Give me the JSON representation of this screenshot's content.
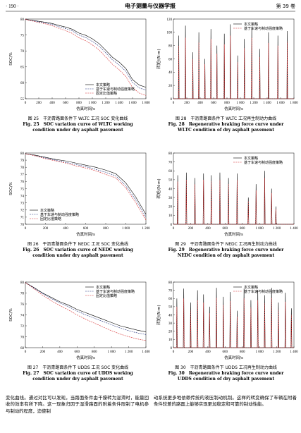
{
  "header": {
    "page": "· 190 ·",
    "journal": "电子测量与仪器学报",
    "volume": "第 39 卷"
  },
  "chart_data": [
    {
      "type": "line",
      "xlabel": "仿真时间/s",
      "ylabel": "SOC/%",
      "legend": "lower right",
      "xlim": [
        0,
        1800
      ],
      "xticks": [
        0,
        200,
        400,
        600,
        800,
        {
          "value": 1000,
          "label": "1 000"
        },
        {
          "value": 1200,
          "label": "1 200"
        },
        {
          "value": 1400,
          "label": "1 400"
        },
        {
          "value": 1600,
          "label": "1 600"
        },
        {
          "value": 1800,
          "label": "1 800"
        }
      ],
      "ylim": [
        55,
        80
      ],
      "yticks": [
        55,
        60,
        65,
        70,
        75,
        80
      ],
      "x": [
        0,
        100,
        200,
        300,
        400,
        500,
        600,
        700,
        800,
        900,
        1000,
        1100,
        1200,
        1300,
        1400,
        1500,
        1600,
        1700,
        1800
      ],
      "series": [
        {
          "name": "本文策略",
          "color": "#000000",
          "dashed": false,
          "values": [
            79.9,
            79.6,
            79.3,
            79.0,
            78.6,
            78.0,
            77.5,
            76.8,
            75.6,
            74.9,
            73.8,
            72.3,
            70.2,
            68.0,
            66.5,
            64.5,
            61.0,
            59.3,
            58.6
          ]
        },
        {
          "name": "基于车速与制动强度策略",
          "color": "#1f2f7a",
          "dashed": true,
          "values": [
            79.9,
            79.5,
            79.1,
            78.8,
            78.3,
            77.6,
            77.0,
            76.3,
            75.0,
            74.2,
            73.0,
            71.5,
            69.4,
            67.2,
            65.6,
            63.6,
            60.1,
            58.4,
            57.7
          ]
        },
        {
          "name": "固定比值策略",
          "color": "#d62728",
          "dashed": true,
          "values": [
            79.9,
            79.4,
            78.9,
            78.5,
            77.9,
            77.1,
            76.4,
            75.5,
            74.1,
            73.2,
            71.9,
            70.3,
            68.1,
            65.8,
            64.1,
            62.0,
            58.5,
            56.8,
            56.0
          ]
        }
      ]
    },
    {
      "type": "line",
      "xlabel": "仿真时间/s",
      "ylabel": "SOC/%",
      "legend": "lower left",
      "xlim": [
        0,
        1200
      ],
      "xticks": [
        0,
        200,
        400,
        600,
        800,
        {
          "value": 1000,
          "label": "1 000"
        },
        {
          "value": 1200,
          "label": "1 200"
        }
      ],
      "ylim": [
        70,
        80
      ],
      "yticks": [
        70,
        71,
        72,
        73,
        74,
        75,
        76,
        77,
        78,
        79,
        80
      ],
      "x": [
        0,
        100,
        200,
        300,
        400,
        500,
        600,
        700,
        800,
        900,
        1000,
        1100,
        1200
      ],
      "series": [
        {
          "name": "本文策略",
          "color": "#000000",
          "dashed": false,
          "values": [
            79.9,
            79.7,
            79.4,
            79.1,
            78.9,
            78.6,
            78.3,
            78.0,
            77.6,
            77.1,
            75.8,
            73.8,
            71.4
          ]
        },
        {
          "name": "基于车速与制动强度策略",
          "color": "#1f2f7a",
          "dashed": true,
          "values": [
            79.9,
            79.6,
            79.3,
            79.0,
            78.7,
            78.4,
            78.1,
            77.7,
            77.3,
            76.8,
            75.4,
            73.4,
            71.0
          ]
        },
        {
          "name": "固定比值策略",
          "color": "#d62728",
          "dashed": true,
          "values": [
            79.9,
            79.6,
            79.2,
            78.9,
            78.6,
            78.2,
            77.9,
            77.5,
            77.0,
            76.5,
            75.1,
            73.0,
            70.6
          ]
        }
      ]
    },
    {
      "type": "line",
      "xlabel": "仿真时间/s",
      "ylabel": "SOC/%",
      "legend": "upper right",
      "xlim": [
        0,
        1400
      ],
      "xticks": [
        0,
        200,
        400,
        600,
        800,
        {
          "value": 1000,
          "label": "1 000"
        },
        {
          "value": 1200,
          "label": "1 200"
        },
        {
          "value": 1400,
          "label": "1 400"
        }
      ],
      "ylim": [
        68,
        80
      ],
      "yticks": [
        68,
        70,
        72,
        74,
        76,
        78,
        80
      ],
      "x": [
        0,
        100,
        200,
        300,
        400,
        500,
        600,
        700,
        800,
        900,
        1000,
        1100,
        1200,
        1300,
        1400
      ],
      "series": [
        {
          "name": "本文策略",
          "color": "#000000",
          "dashed": false,
          "values": [
            79.9,
            79.0,
            78.0,
            77.2,
            76.4,
            75.8,
            75.0,
            74.4,
            73.8,
            73.2,
            72.6,
            72.0,
            71.6,
            71.2,
            70.9
          ]
        },
        {
          "name": "基于车速与制动强度策略",
          "color": "#1f2f7a",
          "dashed": true,
          "values": [
            79.9,
            78.9,
            77.9,
            77.0,
            76.2,
            75.5,
            74.7,
            74.0,
            73.4,
            72.8,
            72.2,
            71.6,
            71.1,
            70.7,
            70.4
          ]
        },
        {
          "name": "固定比值策略",
          "color": "#d62728",
          "dashed": true,
          "values": [
            79.9,
            78.8,
            77.6,
            76.6,
            75.7,
            74.9,
            74.0,
            73.2,
            72.5,
            71.8,
            71.1,
            70.5,
            70.0,
            69.6,
            69.3
          ]
        }
      ]
    },
    {
      "type": "line",
      "xlabel": "仿真时间/s",
      "ylabel": "转矩/(N·m)",
      "legend": "upper right",
      "xlim": [
        0,
        1800
      ],
      "xticks": [
        0,
        200,
        400,
        600,
        800,
        {
          "value": 1000,
          "label": "1 000"
        },
        {
          "value": 1200,
          "label": "1 200"
        },
        {
          "value": 1400,
          "label": "1 400"
        },
        {
          "value": 1600,
          "label": "1 600"
        },
        {
          "value": 1800,
          "label": "1 800"
        }
      ],
      "ylim": [
        0,
        120
      ],
      "yticks": [
        0,
        20,
        40,
        60,
        80,
        100,
        120
      ],
      "x": [
        0,
        75,
        80,
        85,
        175,
        180,
        185,
        285,
        290,
        295,
        375,
        380,
        385,
        465,
        470,
        475,
        555,
        560,
        565,
        645,
        650,
        655,
        755,
        760,
        765,
        845,
        850,
        855,
        955,
        960,
        965,
        1055,
        1060,
        1065,
        1165,
        1170,
        1175,
        1285,
        1290,
        1295,
        1415,
        1420,
        1425,
        1555,
        1560,
        1565,
        1695,
        1700,
        1705,
        1800
      ],
      "series": [
        {
          "name": "本文策略",
          "color": "#000000",
          "dashed": false,
          "values": [
            0,
            0,
            95,
            0,
            0,
            110,
            0,
            0,
            70,
            0,
            0,
            100,
            0,
            0,
            60,
            0,
            0,
            105,
            0,
            0,
            80,
            0,
            0,
            98,
            0,
            0,
            112,
            0,
            0,
            65,
            0,
            0,
            90,
            0,
            0,
            108,
            0,
            0,
            75,
            0,
            0,
            100,
            0,
            0,
            95,
            0,
            0,
            102,
            0,
            0
          ]
        },
        {
          "name": "基于车速与制动强度策略",
          "color": "#d62728",
          "dashed": true,
          "values": [
            0,
            0,
            80,
            0,
            0,
            92,
            0,
            0,
            60,
            0,
            0,
            85,
            0,
            0,
            52,
            0,
            0,
            90,
            0,
            0,
            68,
            0,
            0,
            82,
            0,
            0,
            95,
            0,
            0,
            55,
            0,
            0,
            76,
            0,
            0,
            92,
            0,
            0,
            63,
            0,
            0,
            84,
            0,
            0,
            80,
            0,
            0,
            86,
            0,
            0
          ]
        }
      ]
    },
    {
      "type": "line",
      "xlabel": "仿真时间/s",
      "ylabel": "转矩/(N·m)",
      "legend": "upper right",
      "xlim": [
        0,
        1400
      ],
      "xticks": [
        0,
        200,
        400,
        600,
        800,
        {
          "value": 1000,
          "label": "1 000"
        },
        {
          "value": 1200,
          "label": "1 200"
        },
        {
          "value": 1400,
          "label": "1 400"
        }
      ],
      "ylim": [
        0,
        80
      ],
      "yticks": [
        0,
        10,
        20,
        30,
        40,
        50,
        60,
        70,
        80
      ],
      "x": [
        0,
        45,
        50,
        55,
        145,
        150,
        155,
        245,
        250,
        255,
        345,
        350,
        355,
        435,
        440,
        445,
        535,
        540,
        545,
        635,
        640,
        645,
        735,
        740,
        745,
        865,
        870,
        875,
        955,
        960,
        965,
        1055,
        1060,
        1065,
        1135,
        1140,
        1145,
        1185,
        1190,
        1195,
        1400
      ],
      "series": [
        {
          "name": "本文策略",
          "color": "#000000",
          "dashed": false,
          "values": [
            0,
            0,
            55,
            0,
            0,
            58,
            0,
            0,
            52,
            0,
            0,
            57,
            0,
            0,
            55,
            0,
            0,
            58,
            0,
            0,
            52,
            0,
            0,
            57,
            0,
            0,
            30,
            0,
            0,
            45,
            0,
            0,
            60,
            0,
            0,
            40,
            0,
            0,
            20,
            0,
            0
          ]
        },
        {
          "name": "基于车速与制动强度策略",
          "color": "#d62728",
          "dashed": true,
          "values": [
            0,
            0,
            48,
            0,
            0,
            50,
            0,
            0,
            45,
            0,
            0,
            50,
            0,
            0,
            48,
            0,
            0,
            50,
            0,
            0,
            45,
            0,
            0,
            50,
            0,
            0,
            26,
            0,
            0,
            38,
            0,
            0,
            52,
            0,
            0,
            35,
            0,
            0,
            17,
            0,
            0
          ]
        }
      ]
    },
    {
      "type": "line",
      "xlabel": "仿真时间/s",
      "ylabel": "转矩/(N·m)",
      "legend": "upper right",
      "xlim": [
        0,
        1400
      ],
      "xticks": [
        0,
        200,
        400,
        600,
        800,
        {
          "value": 1000,
          "label": "1 000"
        },
        {
          "value": 1200,
          "label": "1 200"
        },
        {
          "value": 1400,
          "label": "1 400"
        }
      ],
      "ylim": [
        0,
        80
      ],
      "yticks": [
        0,
        10,
        20,
        30,
        40,
        50,
        60,
        70,
        80
      ],
      "x": [
        0,
        35,
        40,
        45,
        115,
        120,
        125,
        195,
        200,
        205,
        275,
        280,
        285,
        345,
        350,
        355,
        415,
        420,
        425,
        495,
        500,
        505,
        575,
        580,
        585,
        655,
        660,
        665,
        735,
        740,
        745,
        815,
        820,
        825,
        895,
        900,
        905,
        975,
        980,
        985,
        1055,
        1060,
        1065,
        1135,
        1140,
        1145,
        1215,
        1220,
        1225,
        1295,
        1300,
        1305,
        1365,
        1370,
        1375,
        1400
      ],
      "series": [
        {
          "name": "本文策略",
          "color": "#000000",
          "dashed": false,
          "values": [
            0,
            0,
            60,
            0,
            0,
            72,
            0,
            0,
            55,
            0,
            0,
            70,
            0,
            0,
            65,
            0,
            0,
            50,
            0,
            0,
            73,
            0,
            0,
            62,
            0,
            0,
            68,
            0,
            0,
            45,
            0,
            0,
            72,
            0,
            0,
            58,
            0,
            0,
            70,
            0,
            0,
            64,
            0,
            0,
            73,
            0,
            0,
            55,
            0,
            0,
            67,
            0,
            0,
            48,
            0,
            0
          ]
        },
        {
          "name": "基于车速与制动强度策略",
          "color": "#d62728",
          "dashed": true,
          "values": [
            0,
            0,
            50,
            0,
            0,
            60,
            0,
            0,
            46,
            0,
            0,
            58,
            0,
            0,
            55,
            0,
            0,
            42,
            0,
            0,
            61,
            0,
            0,
            52,
            0,
            0,
            57,
            0,
            0,
            38,
            0,
            0,
            60,
            0,
            0,
            49,
            0,
            0,
            58,
            0,
            0,
            54,
            0,
            0,
            61,
            0,
            0,
            46,
            0,
            0,
            56,
            0,
            0,
            40,
            0,
            0
          ]
        }
      ]
    }
  ],
  "captions": [
    {
      "zh": "图 25　干沥青路面条件下 WLTC 工况 SOC 变化曲线",
      "en": "Fig. 25　SOC variation curve of WLTC working condition under dry asphalt pavement"
    },
    {
      "zh": "图 26　干沥青路面条件下 NEDC 工况 SOC 变化曲线",
      "en": "Fig. 26　SOC variation curve of NEDC working condition under dry asphalt pavement"
    },
    {
      "zh": "图 27　干沥青路面条件下 UDDS 工况 SOC 变化曲线",
      "en": "Fig. 27　SOC variation curve of UDDS working condition under dry asphalt pavement"
    },
    {
      "zh": "图 28　干沥青路面条件下 WLTC 工况再生制动力曲线",
      "en": "Fig. 28　Regenerative braking force curve under WLTC condition of dry asphalt pavement"
    },
    {
      "zh": "图 29　干沥青路面条件下 NEDC 工况再生制动力曲线",
      "en": "Fig. 29　Regenerative braking force curve under NEDC condition of dry asphalt pavement"
    },
    {
      "zh": "图 30　干沥青路面条件下 UDDS 工况再生制动力曲线",
      "en": "Fig. 30　Regenerative braking force curve under UDDS condition of dry asphalt pavement"
    }
  ],
  "body": {
    "left": "变化曲线。通过对比可以发现，当路面条件由干燥转为湿滑时，能量回收的效率有所下降。这一现象归因于湿滑路面的附着条件限制了电机参与制动的程度，迫使制",
    "right": "动系统更多地依赖传统的液压制动机制。这样的转变确保了车辆在附着条件较差的路面上能够实现更加稳定和可靠的制动性能。"
  }
}
